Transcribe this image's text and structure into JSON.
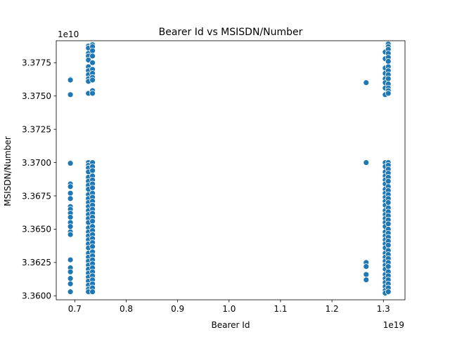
{
  "chart_data": {
    "type": "scatter",
    "title": "Bearer Id vs MSISDN/Number",
    "xlabel": "Bearer Id",
    "ylabel": "MSISDN/Number",
    "x_offset_label": "1e19",
    "y_offset_label": "1e10",
    "x_scale": 1e+19,
    "y_scale": 10000000000.0,
    "xlim": [
      0.664,
      1.342
    ],
    "ylim": [
      3.3597,
      3.37915
    ],
    "x_ticks": [
      0.7,
      0.8,
      0.9,
      1.0,
      1.1,
      1.2,
      1.3
    ],
    "x_tick_labels": [
      "0.7",
      "0.8",
      "0.9",
      "1.0",
      "1.1",
      "1.2",
      "1.3"
    ],
    "y_ticks": [
      3.36,
      3.3625,
      3.365,
      3.3675,
      3.37,
      3.3725,
      3.375,
      3.3775
    ],
    "y_tick_labels": [
      "3.3600",
      "3.3625",
      "3.3650",
      "3.3675",
      "3.3700",
      "3.3725",
      "3.3750",
      "3.3775"
    ],
    "grid": false,
    "marker_color": "#1f77b4",
    "series": [
      {
        "points": [
          [
            0.6915,
            3.37625
          ],
          [
            0.6915,
            3.3762
          ],
          [
            0.6915,
            3.3751
          ],
          [
            0.6915,
            3.37
          ],
          [
            0.6915,
            3.36995
          ],
          [
            0.6915,
            3.3684
          ],
          [
            0.6915,
            3.3682
          ],
          [
            0.6915,
            3.3677
          ],
          [
            0.6915,
            3.3673
          ],
          [
            0.6915,
            3.3667
          ],
          [
            0.6915,
            3.3665
          ],
          [
            0.6915,
            3.3662
          ],
          [
            0.6915,
            3.3659
          ],
          [
            0.6915,
            3.3655
          ],
          [
            0.6915,
            3.3652
          ],
          [
            0.6915,
            3.3648
          ],
          [
            0.6915,
            3.3646
          ],
          [
            0.6915,
            3.3627
          ],
          [
            0.6915,
            3.3621
          ],
          [
            0.6915,
            3.3618
          ],
          [
            0.6915,
            3.3613
          ],
          [
            0.6915,
            3.3609
          ],
          [
            0.6915,
            3.3603
          ],
          [
            0.7265,
            3.37875
          ],
          [
            0.7265,
            3.3786
          ],
          [
            0.7265,
            3.3782
          ],
          [
            0.7265,
            3.378
          ],
          [
            0.7265,
            3.3777
          ],
          [
            0.7265,
            3.3772
          ],
          [
            0.7265,
            3.3769
          ],
          [
            0.7265,
            3.3766
          ],
          [
            0.7265,
            3.3763
          ],
          [
            0.7265,
            3.3761
          ],
          [
            0.7265,
            3.3752
          ],
          [
            0.7265,
            3.37
          ],
          [
            0.7265,
            3.3698
          ],
          [
            0.7265,
            3.3696
          ],
          [
            0.7265,
            3.3693
          ],
          [
            0.7265,
            3.3689
          ],
          [
            0.7265,
            3.3686
          ],
          [
            0.7265,
            3.3683
          ],
          [
            0.7265,
            3.368
          ],
          [
            0.7265,
            3.3676
          ],
          [
            0.7265,
            3.3673
          ],
          [
            0.7265,
            3.367
          ],
          [
            0.7265,
            3.3667
          ],
          [
            0.7265,
            3.3664
          ],
          [
            0.7265,
            3.3661
          ],
          [
            0.7265,
            3.3658
          ],
          [
            0.7265,
            3.3655
          ],
          [
            0.7265,
            3.3651
          ],
          [
            0.7265,
            3.3648
          ],
          [
            0.7265,
            3.3645
          ],
          [
            0.7265,
            3.3642
          ],
          [
            0.7265,
            3.3639
          ],
          [
            0.7265,
            3.3636
          ],
          [
            0.7265,
            3.3632
          ],
          [
            0.7265,
            3.3629
          ],
          [
            0.7265,
            3.3626
          ],
          [
            0.7265,
            3.3623
          ],
          [
            0.7265,
            3.362
          ],
          [
            0.7265,
            3.3617
          ],
          [
            0.7265,
            3.3614
          ],
          [
            0.7265,
            3.3611
          ],
          [
            0.7265,
            3.3608
          ],
          [
            0.7265,
            3.3605
          ],
          [
            0.7265,
            3.3603
          ],
          [
            0.7345,
            3.37885
          ],
          [
            0.7345,
            3.3787
          ],
          [
            0.7345,
            3.3784
          ],
          [
            0.7345,
            3.378
          ],
          [
            0.7345,
            3.3775
          ],
          [
            0.7345,
            3.377
          ],
          [
            0.7345,
            3.3767
          ],
          [
            0.7345,
            3.3764
          ],
          [
            0.7345,
            3.3762
          ],
          [
            0.7345,
            3.3754
          ],
          [
            0.7345,
            3.3752
          ],
          [
            0.7345,
            3.37
          ],
          [
            0.7345,
            3.3697
          ],
          [
            0.7345,
            3.3694
          ],
          [
            0.7345,
            3.369
          ],
          [
            0.7345,
            3.3687
          ],
          [
            0.7345,
            3.3684
          ],
          [
            0.7345,
            3.3681
          ],
          [
            0.7345,
            3.3677
          ],
          [
            0.7345,
            3.3674
          ],
          [
            0.7345,
            3.3671
          ],
          [
            0.7345,
            3.3668
          ],
          [
            0.7345,
            3.3665
          ],
          [
            0.7345,
            3.3662
          ],
          [
            0.7345,
            3.3659
          ],
          [
            0.7345,
            3.3656
          ],
          [
            0.7345,
            3.3652
          ],
          [
            0.7345,
            3.3649
          ],
          [
            0.7345,
            3.3646
          ],
          [
            0.7345,
            3.3643
          ],
          [
            0.7345,
            3.364
          ],
          [
            0.7345,
            3.3637
          ],
          [
            0.7345,
            3.3633
          ],
          [
            0.7345,
            3.363
          ],
          [
            0.7345,
            3.3627
          ],
          [
            0.7345,
            3.3624
          ],
          [
            0.7345,
            3.3621
          ],
          [
            0.7345,
            3.3618
          ],
          [
            0.7345,
            3.3615
          ],
          [
            0.7345,
            3.3612
          ],
          [
            0.7345,
            3.3609
          ],
          [
            0.7345,
            3.3606
          ],
          [
            0.7345,
            3.3603
          ],
          [
            1.2665,
            3.376
          ],
          [
            1.2665,
            3.37
          ],
          [
            1.2665,
            3.3625
          ],
          [
            1.2665,
            3.3622
          ],
          [
            1.2665,
            3.3616
          ],
          [
            1.2665,
            3.3612
          ],
          [
            1.3035,
            3.3783
          ],
          [
            1.3035,
            3.3778
          ],
          [
            1.3035,
            3.3771
          ],
          [
            1.3035,
            3.3767
          ],
          [
            1.3035,
            3.3763
          ],
          [
            1.3035,
            3.376
          ],
          [
            1.3035,
            3.3756
          ],
          [
            1.3035,
            3.3751
          ],
          [
            1.3035,
            3.37
          ],
          [
            1.3035,
            3.3697
          ],
          [
            1.3035,
            3.3693
          ],
          [
            1.3035,
            3.369
          ],
          [
            1.3035,
            3.3687
          ],
          [
            1.3035,
            3.3684
          ],
          [
            1.3035,
            3.368
          ],
          [
            1.3035,
            3.3677
          ],
          [
            1.3035,
            3.3674
          ],
          [
            1.3035,
            3.3671
          ],
          [
            1.3035,
            3.3668
          ],
          [
            1.3035,
            3.3664
          ],
          [
            1.3035,
            3.3661
          ],
          [
            1.3035,
            3.3658
          ],
          [
            1.3035,
            3.3655
          ],
          [
            1.3035,
            3.3652
          ],
          [
            1.3035,
            3.3648
          ],
          [
            1.3035,
            3.3645
          ],
          [
            1.3035,
            3.3642
          ],
          [
            1.3035,
            3.3639
          ],
          [
            1.3035,
            3.3636
          ],
          [
            1.3035,
            3.3632
          ],
          [
            1.3035,
            3.3629
          ],
          [
            1.3035,
            3.3626
          ],
          [
            1.3035,
            3.3623
          ],
          [
            1.3035,
            3.362
          ],
          [
            1.3035,
            3.3616
          ],
          [
            1.3035,
            3.3613
          ],
          [
            1.3035,
            3.361
          ],
          [
            1.3035,
            3.3607
          ],
          [
            1.3035,
            3.3604
          ],
          [
            1.3035,
            3.3602
          ],
          [
            1.3095,
            3.3789
          ],
          [
            1.3095,
            3.3787
          ],
          [
            1.3095,
            3.3785
          ],
          [
            1.3095,
            3.3782
          ],
          [
            1.3095,
            3.3779
          ],
          [
            1.3095,
            3.3776
          ],
          [
            1.3095,
            3.3772
          ],
          [
            1.3095,
            3.3769
          ],
          [
            1.3095,
            3.3766
          ],
          [
            1.3095,
            3.3763
          ],
          [
            1.3095,
            3.3759
          ],
          [
            1.3095,
            3.3756
          ],
          [
            1.3095,
            3.3754
          ],
          [
            1.3095,
            3.3752
          ],
          [
            1.3095,
            3.37
          ],
          [
            1.3095,
            3.3698
          ],
          [
            1.3095,
            3.3695
          ],
          [
            1.3095,
            3.3692
          ],
          [
            1.3095,
            3.3689
          ],
          [
            1.3095,
            3.3686
          ],
          [
            1.3095,
            3.3682
          ],
          [
            1.3095,
            3.3679
          ],
          [
            1.3095,
            3.3676
          ],
          [
            1.3095,
            3.3673
          ],
          [
            1.3095,
            3.367
          ],
          [
            1.3095,
            3.3666
          ],
          [
            1.3095,
            3.3663
          ],
          [
            1.3095,
            3.366
          ],
          [
            1.3095,
            3.3657
          ],
          [
            1.3095,
            3.3654
          ],
          [
            1.3095,
            3.365
          ],
          [
            1.3095,
            3.3647
          ],
          [
            1.3095,
            3.3644
          ],
          [
            1.3095,
            3.3641
          ],
          [
            1.3095,
            3.3638
          ],
          [
            1.3095,
            3.3634
          ],
          [
            1.3095,
            3.3631
          ],
          [
            1.3095,
            3.3628
          ],
          [
            1.3095,
            3.3625
          ],
          [
            1.3095,
            3.3622
          ],
          [
            1.3095,
            3.3618
          ],
          [
            1.3095,
            3.3615
          ],
          [
            1.3095,
            3.3612
          ],
          [
            1.3095,
            3.3609
          ],
          [
            1.3095,
            3.3606
          ],
          [
            1.3095,
            3.3603
          ]
        ]
      }
    ]
  }
}
